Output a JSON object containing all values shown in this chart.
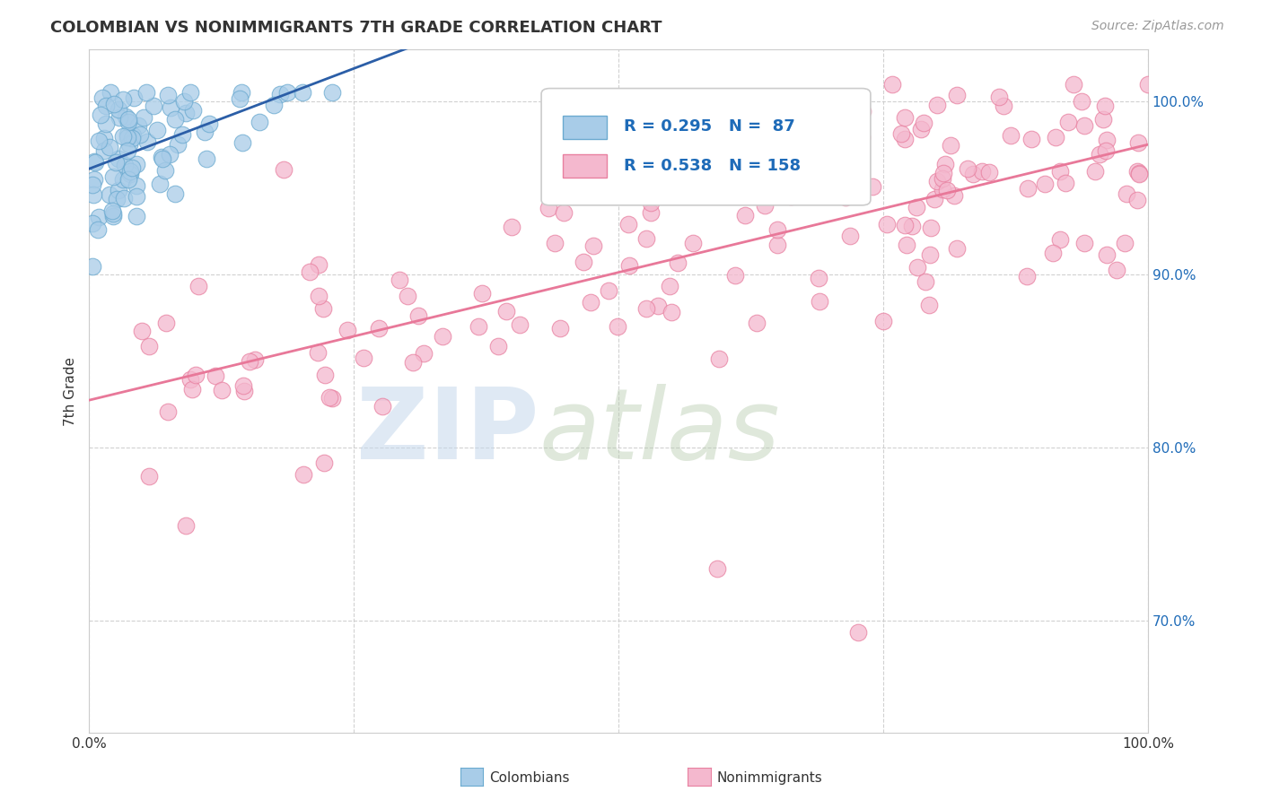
{
  "title": "COLOMBIAN VS NONIMMIGRANTS 7TH GRADE CORRELATION CHART",
  "source": "Source: ZipAtlas.com",
  "ylabel": "7th Grade",
  "xlim": [
    0,
    1.0
  ],
  "ylim": [
    0.635,
    1.03
  ],
  "xticks": [
    0.0,
    0.25,
    0.5,
    0.75,
    1.0
  ],
  "xticklabels": [
    "0.0%",
    "",
    "",
    "",
    "100.0%"
  ],
  "yticks": [
    0.7,
    0.8,
    0.9,
    1.0
  ],
  "yticklabels": [
    "70.0%",
    "80.0%",
    "90.0%",
    "100.0%"
  ],
  "colombians_R": 0.295,
  "colombians_N": 87,
  "nonimmigrants_R": 0.538,
  "nonimmigrants_N": 158,
  "blue_color": "#A8CCE8",
  "blue_edge_color": "#6BAAD0",
  "blue_line_color": "#2B5EA7",
  "pink_color": "#F4B8CE",
  "pink_edge_color": "#E880A0",
  "pink_line_color": "#E87899",
  "background_color": "#FFFFFF",
  "grid_color": "#CCCCCC",
  "title_color": "#333333",
  "source_color": "#999999",
  "legend_color": "#1E6BB8",
  "tick_color": "#1E6BB8"
}
